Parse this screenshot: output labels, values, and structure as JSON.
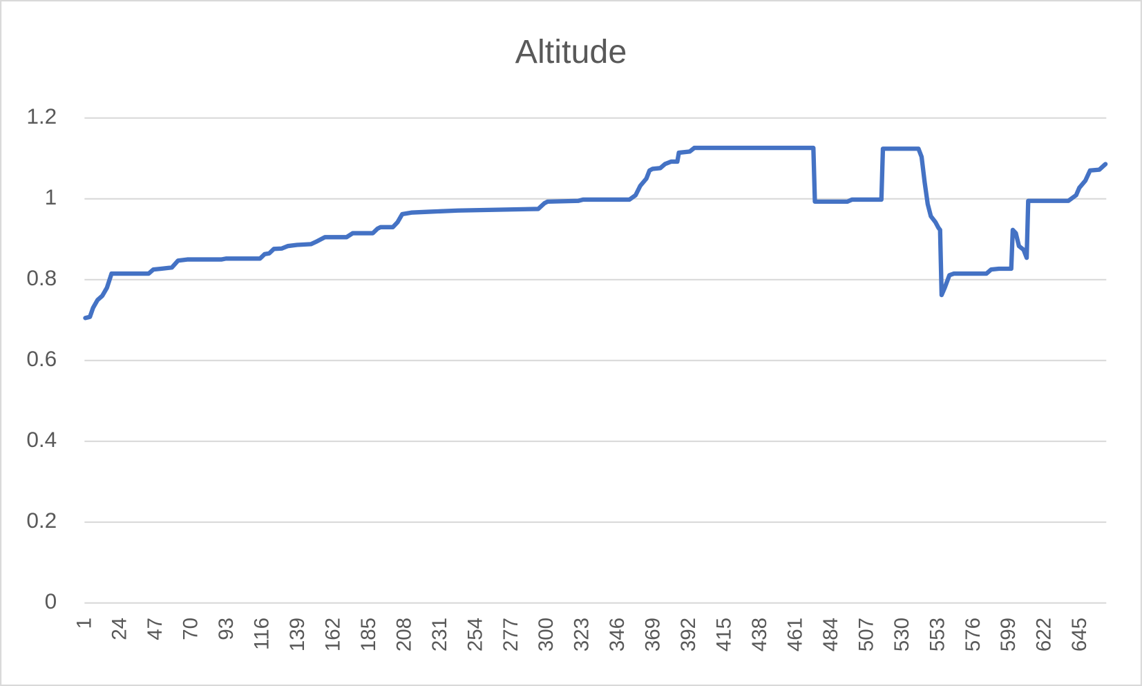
{
  "chart_data": {
    "type": "line",
    "title": "Altitude",
    "x": [
      1,
      4,
      6,
      9,
      12,
      15,
      18,
      42,
      45,
      50,
      57,
      61,
      67,
      89,
      92,
      114,
      117,
      120,
      123,
      128,
      132,
      138,
      147,
      151,
      156,
      170,
      174,
      187,
      190,
      192,
      200,
      203,
      206,
      212,
      223,
      242,
      294,
      298,
      300,
      320,
      323,
      353,
      357,
      360,
      364,
      366,
      368,
      373,
      376,
      380,
      384,
      385,
      392,
      395,
      472,
      473,
      494,
      497,
      516,
      517,
      540,
      542,
      544,
      546,
      548,
      551,
      553,
      554,
      555,
      557,
      560,
      563,
      584,
      587,
      592,
      600,
      601,
      603,
      605,
      608,
      610,
      611,
      637,
      642,
      644,
      648,
      651,
      657,
      661
    ],
    "values": [
      0.705,
      0.708,
      0.73,
      0.75,
      0.76,
      0.78,
      0.815,
      0.815,
      0.825,
      0.827,
      0.83,
      0.847,
      0.85,
      0.85,
      0.852,
      0.852,
      0.863,
      0.865,
      0.876,
      0.877,
      0.883,
      0.886,
      0.888,
      0.895,
      0.905,
      0.905,
      0.915,
      0.915,
      0.926,
      0.93,
      0.93,
      0.942,
      0.962,
      0.966,
      0.968,
      0.971,
      0.975,
      0.989,
      0.993,
      0.995,
      0.998,
      0.998,
      1.009,
      1.032,
      1.05,
      1.07,
      1.074,
      1.076,
      1.086,
      1.092,
      1.092,
      1.114,
      1.117,
      1.126,
      1.126,
      0.993,
      0.993,
      0.998,
      0.998,
      1.124,
      1.124,
      1.104,
      1.041,
      0.987,
      0.957,
      0.942,
      0.928,
      0.923,
      0.762,
      0.78,
      0.811,
      0.815,
      0.815,
      0.825,
      0.827,
      0.827,
      0.923,
      0.915,
      0.883,
      0.874,
      0.854,
      0.995,
      0.995,
      1.009,
      1.027,
      1.045,
      1.07,
      1.072,
      1.086
    ],
    "color": "#4472c4",
    "xlim": [
      0.5,
      661.5
    ],
    "xticks": [
      1,
      24,
      47,
      70,
      93,
      116,
      139,
      162,
      185,
      208,
      231,
      254,
      277,
      300,
      323,
      346,
      369,
      392,
      415,
      438,
      461,
      484,
      507,
      530,
      553,
      576,
      599,
      622,
      645
    ],
    "ylim": [
      0,
      1.2
    ],
    "yticks": [
      0,
      0.2,
      0.4,
      0.6,
      0.8,
      1,
      1.2
    ],
    "grid": true
  }
}
